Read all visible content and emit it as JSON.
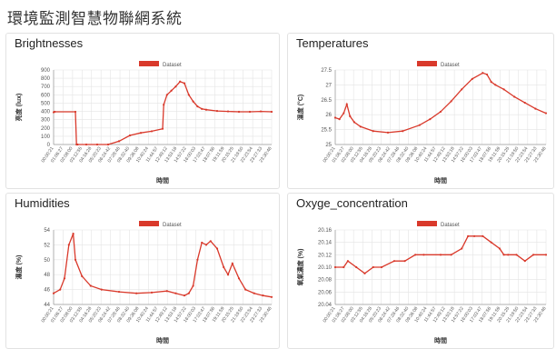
{
  "page": {
    "title": "環境監測智慧物聯網系統"
  },
  "panels": [
    {
      "title": "Brightnesses"
    },
    {
      "title": "Temperatures"
    },
    {
      "title": "Humidities"
    },
    {
      "title": "Oxyge_concentration"
    }
  ],
  "colors": {
    "series": "#d9392b",
    "grid": "#e4e4e4",
    "axis_text": "#555555"
  },
  "chart_data": [
    {
      "type": "line",
      "title": "Brightnesses",
      "legend": {
        "label": "Dataset",
        "position": "top-center"
      },
      "xlabel": "時間",
      "ylabel": "亮度 (lux)",
      "ylim": [
        0,
        900
      ],
      "yticks": [
        0,
        100,
        200,
        300,
        400,
        500,
        600,
        700,
        800,
        900
      ],
      "xticks": [
        "00:00:21",
        "01:06:27",
        "02:08:00",
        "03:12:55",
        "04:16:28",
        "05:20:23",
        "06:24:42",
        "07:28:46",
        "08:32:40",
        "09:36:08",
        "10:40:24",
        "11:44:57",
        "12:49:12",
        "13:53:18",
        "14:57:22",
        "16:00:03",
        "17:03:47",
        "18:07:56",
        "19:11:59",
        "20:15:25",
        "21:19:50",
        "22:23:54",
        "23:27:33",
        "23:30:46"
      ],
      "grid": true,
      "series": [
        {
          "x_frac": [
            0,
            0.005,
            0.1,
            0.105,
            0.11,
            0.15,
            0.2,
            0.25,
            0.3,
            0.35,
            0.4,
            0.45,
            0.5,
            0.505,
            0.52,
            0.54,
            0.56,
            0.58,
            0.6,
            0.62,
            0.64,
            0.66,
            0.68,
            0.7,
            0.75,
            0.8,
            0.85,
            0.9,
            0.95,
            1
          ],
          "values": [
            390,
            395,
            395,
            0,
            0,
            0,
            0,
            0,
            40,
            110,
            140,
            160,
            190,
            480,
            600,
            650,
            700,
            760,
            740,
            600,
            520,
            460,
            430,
            420,
            405,
            400,
            395,
            395,
            400,
            395
          ]
        }
      ]
    },
    {
      "type": "line",
      "title": "Temperatures",
      "legend": {
        "label": "Dataset",
        "position": "top-center"
      },
      "xlabel": "時間",
      "ylabel": "溫度 (°C)",
      "ylim": [
        25.0,
        27.5
      ],
      "yticks": [
        25.0,
        25.5,
        26.0,
        26.5,
        27.0,
        27.5
      ],
      "xticks": [
        "00:00:21",
        "01:06:27",
        "02:08:00",
        "03:12:55",
        "04:16:28",
        "05:20:23",
        "06:24:42",
        "07:28:46",
        "08:32:40",
        "09:36:08",
        "10:40:24",
        "11:44:57",
        "12:49:12",
        "13:53:18",
        "14:57:22",
        "16:00:03",
        "17:03:47",
        "18:07:56",
        "19:11:59",
        "20:15:25",
        "21:19:50",
        "22:23:54",
        "23:27:33",
        "23:30:46"
      ],
      "grid": true,
      "series": [
        {
          "x_frac": [
            0,
            0.02,
            0.04,
            0.055,
            0.07,
            0.09,
            0.12,
            0.18,
            0.25,
            0.32,
            0.4,
            0.45,
            0.5,
            0.55,
            0.6,
            0.65,
            0.7,
            0.72,
            0.74,
            0.76,
            0.8,
            0.85,
            0.9,
            0.95,
            1
          ],
          "values": [
            25.9,
            25.85,
            26.05,
            26.35,
            25.95,
            25.75,
            25.6,
            25.45,
            25.4,
            25.45,
            25.65,
            25.85,
            26.1,
            26.45,
            26.85,
            27.2,
            27.4,
            27.35,
            27.1,
            27.0,
            26.85,
            26.6,
            26.4,
            26.2,
            26.05
          ]
        }
      ]
    },
    {
      "type": "line",
      "title": "Humidities",
      "legend": {
        "label": "Dataset",
        "position": "top-center"
      },
      "xlabel": "時間",
      "ylabel": "濕度 (%)",
      "ylim": [
        44,
        54
      ],
      "yticks": [
        44,
        46,
        48,
        50,
        52,
        54
      ],
      "xticks": [
        "00:00:21",
        "01:06:27",
        "02:08:00",
        "03:12:55",
        "04:16:28",
        "05:20:23",
        "06:24:42",
        "07:28:46",
        "08:32:40",
        "09:36:08",
        "10:40:24",
        "11:44:57",
        "12:49:12",
        "13:53:18",
        "14:57:22",
        "16:00:03",
        "17:03:47",
        "18:07:56",
        "19:11:59",
        "20:15:25",
        "21:19:50",
        "22:23:54",
        "23:27:33",
        "23:30:46"
      ],
      "grid": true,
      "series": [
        {
          "x_frac": [
            0,
            0.03,
            0.05,
            0.07,
            0.09,
            0.1,
            0.13,
            0.17,
            0.22,
            0.3,
            0.38,
            0.45,
            0.52,
            0.56,
            0.6,
            0.62,
            0.64,
            0.66,
            0.68,
            0.7,
            0.72,
            0.75,
            0.78,
            0.8,
            0.82,
            0.85,
            0.88,
            0.92,
            0.96,
            1
          ],
          "values": [
            45.5,
            46,
            47.5,
            52,
            53.5,
            50,
            47.8,
            46.5,
            46,
            45.7,
            45.5,
            45.6,
            45.8,
            45.5,
            45.2,
            45.5,
            46.5,
            50,
            52.3,
            52,
            52.5,
            51.5,
            49,
            48,
            49.5,
            47.5,
            46,
            45.5,
            45.2,
            45
          ]
        }
      ]
    },
    {
      "type": "line",
      "title": "Oxyge_concentration",
      "legend": {
        "label": "Dataset",
        "position": "top-center"
      },
      "xlabel": "時間",
      "ylabel": "氧氣濃度 (%)",
      "ylim": [
        20.04,
        20.16
      ],
      "yticks": [
        20.04,
        20.06,
        20.08,
        20.1,
        20.12,
        20.14,
        20.16
      ],
      "xticks": [
        "00:00:21",
        "01:06:27",
        "02:08:00",
        "03:12:55",
        "04:16:28",
        "05:20:23",
        "06:24:42",
        "07:28:46",
        "08:32:40",
        "09:36:08",
        "10:40:24",
        "11:44:57",
        "12:49:12",
        "13:53:18",
        "14:57:22",
        "16:00:03",
        "17:03:47",
        "18:07:56",
        "19:11:59",
        "20:15:25",
        "21:19:50",
        "22:23:54",
        "23:27:33",
        "23:30:46"
      ],
      "grid": true,
      "series": [
        {
          "x_frac": [
            0,
            0.04,
            0.06,
            0.1,
            0.14,
            0.18,
            0.22,
            0.28,
            0.33,
            0.38,
            0.42,
            0.5,
            0.55,
            0.6,
            0.63,
            0.66,
            0.7,
            0.74,
            0.78,
            0.8,
            0.82,
            0.86,
            0.9,
            0.94,
            1
          ],
          "values": [
            20.1,
            20.1,
            20.11,
            20.1,
            20.09,
            20.1,
            20.1,
            20.11,
            20.11,
            20.12,
            20.12,
            20.12,
            20.12,
            20.13,
            20.15,
            20.15,
            20.15,
            20.14,
            20.13,
            20.12,
            20.12,
            20.12,
            20.11,
            20.12,
            20.12
          ]
        }
      ]
    }
  ]
}
